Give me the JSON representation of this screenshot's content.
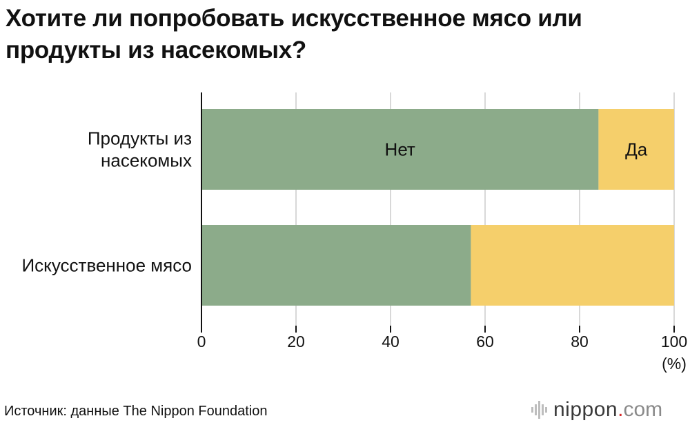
{
  "chart_data": {
    "type": "bar",
    "orientation": "horizontal",
    "stacked": true,
    "title": "Хотите ли попробовать искусственное мясо или продукты из насекомых?",
    "categories": [
      "Продукты из насекомых",
      "Искусственное мясо"
    ],
    "category_lines": [
      [
        "Продукты из",
        "насекомых"
      ],
      [
        "Искусственное мясо"
      ]
    ],
    "series": [
      {
        "name": "Нет",
        "values": [
          84,
          57
        ],
        "color": "#8cab8a"
      },
      {
        "name": "Да",
        "values": [
          16,
          43
        ],
        "color": "#f5cf6b"
      }
    ],
    "xlim": [
      0,
      100
    ],
    "xticks": [
      0,
      20,
      40,
      60,
      80,
      100
    ],
    "x_unit": "(%)",
    "grid": true,
    "legend": "inline labels on first bar"
  },
  "source": "Источник: данные The Nippon Foundation",
  "logo": {
    "name": "nippon",
    "dot": ".",
    "tld": "com",
    "accent": "#d6292a"
  }
}
